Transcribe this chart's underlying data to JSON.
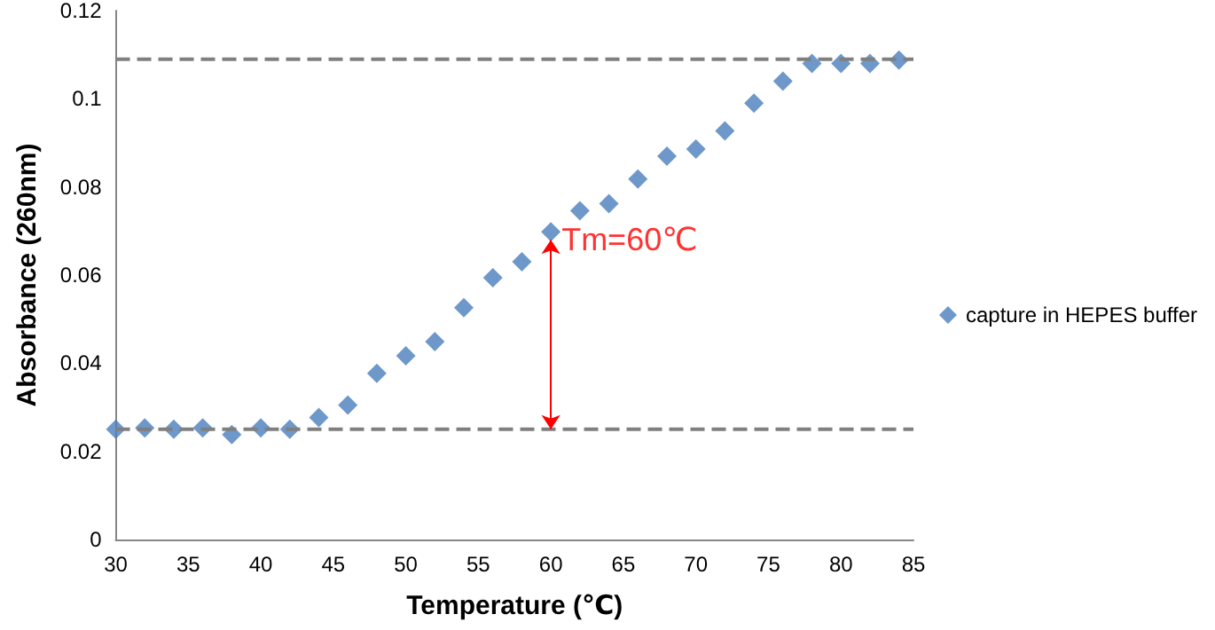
{
  "chart_data": {
    "type": "scatter",
    "xlabel": "Temperature (℃)",
    "ylabel": "Absorbance (260nm)",
    "x": [
      30,
      32,
      34,
      36,
      38,
      40,
      42,
      44,
      46,
      48,
      50,
      52,
      54,
      56,
      58,
      60,
      62,
      64,
      66,
      68,
      70,
      72,
      74,
      76,
      78,
      80,
      82,
      84
    ],
    "series": [
      {
        "name": "capture in HEPES buffer",
        "color": "#4a7ebb",
        "values": [
          0.025,
          0.0253,
          0.025,
          0.0253,
          0.0238,
          0.0253,
          0.025,
          0.0277,
          0.0305,
          0.0377,
          0.0417,
          0.0449,
          0.0526,
          0.0594,
          0.063,
          0.0698,
          0.0746,
          0.0762,
          0.0818,
          0.087,
          0.0886,
          0.0927,
          0.099,
          0.104,
          0.108,
          0.108,
          0.108,
          0.1088
        ]
      }
    ],
    "xlim": [
      30,
      85
    ],
    "xticks": [
      30,
      35,
      40,
      45,
      50,
      55,
      60,
      65,
      70,
      75,
      80,
      85
    ],
    "ylim": [
      0,
      0.12
    ],
    "yticks": [
      0,
      0.02,
      0.04,
      0.06,
      0.08,
      0.1,
      0.12
    ],
    "ref_lines": [
      {
        "axis": "y",
        "value": 0.109,
        "color": "#7f7f7f",
        "line_style": "dashed"
      },
      {
        "axis": "y",
        "value": 0.025,
        "color": "#7f7f7f",
        "line_style": "dashed"
      }
    ],
    "annotations": [
      {
        "text": "Tm=60℃",
        "x": 60,
        "y": 0.068
      }
    ],
    "marker": "diamond",
    "grid": false,
    "legend": "right"
  }
}
